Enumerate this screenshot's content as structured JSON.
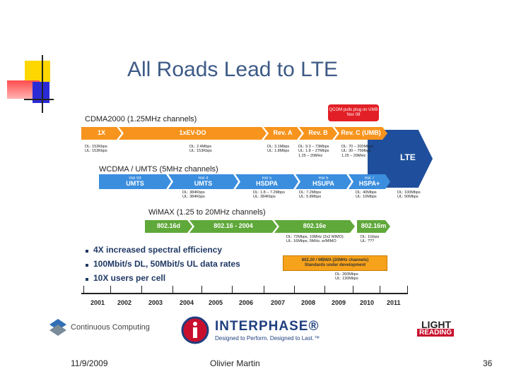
{
  "title": "All Roads Lead to LTE",
  "callout": "QCOM pulls plug on UMB Nov 08",
  "lte": {
    "name": "LTE",
    "speeds": [
      "DL: 100Mbps",
      "UL: 50Mbps"
    ]
  },
  "rows": [
    {
      "label": "CDMA2000 (1.25MHz channels)",
      "segments": [
        {
          "name": "1X"
        },
        {
          "name": "1xEV-DO"
        },
        {
          "name": "Rev. A"
        },
        {
          "name": "Rev. B"
        },
        {
          "name": "Rev. C (UMB)"
        }
      ],
      "speeds": [
        [
          "DL: 153Kbps",
          "UL: 153Kbps"
        ],
        [
          "DL: 2.4Mbps",
          "UL: 153Kbps"
        ],
        [
          "DL: 3.1Mbps",
          "UL: 1.8Mbps"
        ],
        [
          "DL: 9.3 – 73Mbps",
          "UL: 1.8 – 27Mbps",
          "1.25 – 20MHz"
        ],
        [
          "DL: 70 – 200Mbps",
          "UL: 30 – 75Mbps",
          "1.25 – 20MHz"
        ]
      ]
    },
    {
      "label": "WCDMA / UMTS (5MHz channels)",
      "segments": [
        {
          "release": "Rel 99",
          "name": "UMTS"
        },
        {
          "release": "Rel 4",
          "name": "UMTS"
        },
        {
          "release": "Rel 5",
          "name": "HSDPA"
        },
        {
          "release": "Rel 6",
          "name": "HSUPA"
        },
        {
          "release": "Rel 7",
          "name": "HSPA+"
        }
      ],
      "speeds": [
        [
          "DL: 384Kbps",
          "UL: 384Kbps"
        ],
        [
          "DL: 1.8 – 7.2Mbps",
          "UL: 384Kbps"
        ],
        [
          "DL: 7.2Mbps",
          "UL: 5.8Mbps"
        ],
        [
          "DL: 40Mbps",
          "UL: 10Mbps"
        ]
      ]
    },
    {
      "label": "WiMAX (1.25 to 20MHz channels)",
      "segments": [
        {
          "name": "802.16d"
        },
        {
          "name": "802.16 - 2004"
        },
        {
          "name": "802.16e"
        },
        {
          "name": "802.16m"
        }
      ],
      "speeds": [
        [
          "DL: 72Mbps, 10MHz (2x2 MIMO)",
          "UL: 16Mbps, 5MHz, w/MIMO"
        ],
        [
          "DL: 1Gbps",
          "UL: ???"
        ]
      ]
    }
  ],
  "mbwa": {
    "lines": [
      "802.20 / MBWA (20MHz channels)",
      "Standards under development"
    ],
    "speeds": [
      "DL: 260Mbps",
      "UL: 130Mbps"
    ]
  },
  "bullets": [
    "4X increased spectral efficiency",
    "100Mbit/s DL, 50Mbit/s UL data rates",
    "10X users per cell"
  ],
  "years": [
    "2001",
    "2002",
    "2003",
    "2004",
    "2005",
    "2006",
    "2007",
    "2008",
    "2009",
    "2010",
    "2011"
  ],
  "logos": {
    "continuous": "Continuous Computing",
    "interphase": "INTERPHASE®",
    "interphase_tagline": "Designed to Perform. Designed to Last.™",
    "light": "LIGHT",
    "reading": "READING"
  },
  "footer": {
    "date": "11/9/2009",
    "author": "Olivier Martin",
    "page": "36"
  }
}
